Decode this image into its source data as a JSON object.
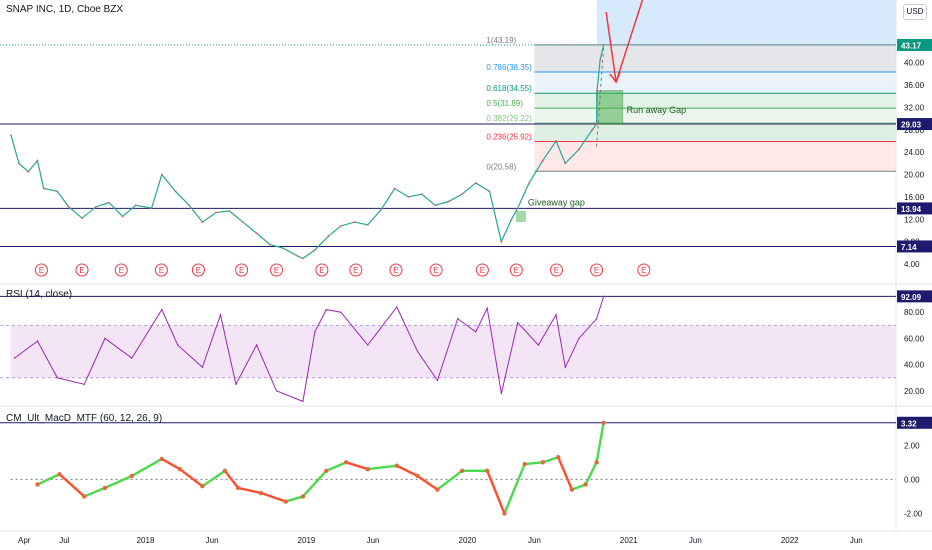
{
  "header": {
    "symbol_title": "SNAP INC, 1D, Cboe BZX",
    "currency_button": "USD"
  },
  "rsi_pane": {
    "title": "RSI (14, close)"
  },
  "macd_pane": {
    "title": "CM_Ult_MacD_MTF (60, 12, 26, 9)"
  },
  "annotations": {
    "runaway_gap": "Run away Gap",
    "giveaway_gap": "Giveaway gap",
    "earnings_marker": "E"
  },
  "price_badges": [
    {
      "label": "43.17",
      "value": 43.17,
      "color": "#089981"
    },
    {
      "label": "29.03",
      "value": 29.03,
      "color": "#1e1b6e"
    },
    {
      "label": "13.94",
      "value": 13.94,
      "color": "#1e1b6e"
    },
    {
      "label": "7.14",
      "value": 7.14,
      "color": "#1e1b6e"
    }
  ],
  "rsi_badge": {
    "label": "92.09",
    "value": 92.09,
    "color": "#1e1b6e"
  },
  "macd_badge": {
    "label": "3.32",
    "value": 3.32,
    "color": "#1e1b6e"
  },
  "chart_data": [
    {
      "type": "line",
      "title": "SNAP INC, 1D, Cboe BZX",
      "series": [
        {
          "name": "",
          "points": [
            [
              "2017-03-02",
              27.0
            ],
            [
              "2017-03-20",
              22.0
            ],
            [
              "2017-04-10",
              20.5
            ],
            [
              "2017-05-01",
              22.5
            ],
            [
              "2017-05-15",
              17.5
            ],
            [
              "2017-06-15",
              17.0
            ],
            [
              "2017-07-10",
              14.3
            ],
            [
              "2017-08-10",
              12.2
            ],
            [
              "2017-09-10",
              14.2
            ],
            [
              "2017-10-10",
              15.0
            ],
            [
              "2017-11-10",
              12.5
            ],
            [
              "2017-12-10",
              14.5
            ],
            [
              "2018-01-15",
              14.0
            ],
            [
              "2018-02-07",
              20.0
            ],
            [
              "2018-03-10",
              17.0
            ],
            [
              "2018-04-10",
              14.5
            ],
            [
              "2018-05-10",
              11.5
            ],
            [
              "2018-06-10",
              13.2
            ],
            [
              "2018-07-10",
              13.5
            ],
            [
              "2018-08-10",
              11.5
            ],
            [
              "2018-09-10",
              9.5
            ],
            [
              "2018-10-10",
              7.5
            ],
            [
              "2018-11-10",
              6.8
            ],
            [
              "2018-12-10",
              5.5
            ],
            [
              "2018-12-24",
              5.0
            ],
            [
              "2019-01-20",
              6.5
            ],
            [
              "2019-02-20",
              9.0
            ],
            [
              "2019-03-20",
              10.8
            ],
            [
              "2019-04-20",
              11.5
            ],
            [
              "2019-05-20",
              11.0
            ],
            [
              "2019-06-20",
              13.8
            ],
            [
              "2019-07-20",
              17.5
            ],
            [
              "2019-08-20",
              16.0
            ],
            [
              "2019-09-20",
              16.5
            ],
            [
              "2019-10-20",
              14.5
            ],
            [
              "2019-11-20",
              15.2
            ],
            [
              "2019-12-20",
              16.5
            ],
            [
              "2020-01-20",
              18.5
            ],
            [
              "2020-02-20",
              17.0
            ],
            [
              "2020-03-18",
              8.0
            ],
            [
              "2020-04-10",
              12.0
            ],
            [
              "2020-04-24",
              14.0
            ],
            [
              "2020-05-20",
              18.5
            ],
            [
              "2020-06-20",
              22.5
            ],
            [
              "2020-07-20",
              26.0
            ],
            [
              "2020-08-10",
              22.0
            ],
            [
              "2020-09-10",
              24.5
            ],
            [
              "2020-10-10",
              28.0
            ],
            [
              "2020-10-20",
              29.03
            ],
            [
              "2020-10-21",
              35.0
            ],
            [
              "2020-10-28",
              40.5
            ],
            [
              "2020-11-05",
              43.17
            ]
          ]
        }
      ],
      "ylim": [
        4,
        48
      ],
      "y_ticks": [
        4,
        8,
        12,
        16,
        20,
        24,
        28,
        32,
        36,
        40
      ],
      "x_tick_labels": [
        "Apr",
        "Jul",
        "2018",
        "Jun",
        "2019",
        "Jun",
        "2020",
        "Jun",
        "2021",
        "Jun",
        "2022",
        "Jun"
      ],
      "fibonacci": [
        {
          "label": "1(43.19)",
          "value": 43.19,
          "color": "#787b86"
        },
        {
          "label": "0.786(38.35)",
          "value": 38.35,
          "color": "#2196f3"
        },
        {
          "label": "0.618(34.55)",
          "value": 34.55,
          "color": "#089981"
        },
        {
          "label": "0.5(31.89)",
          "value": 31.89,
          "color": "#4caf50"
        },
        {
          "label": "0.382(29.22)",
          "value": 29.22,
          "color": "#81c784"
        },
        {
          "label": "0.236(25.92)",
          "value": 25.92,
          "color": "#f23645"
        },
        {
          "label": "0(20.58)",
          "value": 20.58,
          "color": "#787b86"
        }
      ],
      "horizontal_levels": [
        29.03,
        13.94,
        7.14
      ],
      "earnings_dates": [
        "2017-05-10",
        "2017-08-10",
        "2017-11-07",
        "2018-02-06",
        "2018-05-01",
        "2018-08-07",
        "2018-10-25",
        "2019-02-05",
        "2019-04-23",
        "2019-07-23",
        "2019-10-22",
        "2020-02-04",
        "2020-04-21",
        "2020-07-21",
        "2020-10-20",
        "2021-02-04"
      ]
    },
    {
      "type": "line",
      "title": "RSI (14, close)",
      "series": [
        {
          "name": "",
          "points": [
            [
              "2017-03-10",
              45
            ],
            [
              "2017-05-01",
              58
            ],
            [
              "2017-06-15",
              30
            ],
            [
              "2017-08-15",
              25
            ],
            [
              "2017-10-01",
              60
            ],
            [
              "2017-12-01",
              45
            ],
            [
              "2018-02-07",
              82
            ],
            [
              "2018-03-15",
              55
            ],
            [
              "2018-05-10",
              38
            ],
            [
              "2018-06-20",
              78
            ],
            [
              "2018-07-25",
              25
            ],
            [
              "2018-09-10",
              55
            ],
            [
              "2018-10-25",
              20
            ],
            [
              "2018-12-24",
              12
            ],
            [
              "2019-01-20",
              65
            ],
            [
              "2019-02-15",
              82
            ],
            [
              "2019-03-20",
              80
            ],
            [
              "2019-05-20",
              55
            ],
            [
              "2019-07-25",
              84
            ],
            [
              "2019-09-10",
              50
            ],
            [
              "2019-10-25",
              28
            ],
            [
              "2019-12-10",
              75
            ],
            [
              "2020-01-20",
              65
            ],
            [
              "2020-02-15",
              83
            ],
            [
              "2020-03-18",
              18
            ],
            [
              "2020-04-24",
              72
            ],
            [
              "2020-06-10",
              55
            ],
            [
              "2020-07-20",
              78
            ],
            [
              "2020-08-10",
              38
            ],
            [
              "2020-09-10",
              60
            ],
            [
              "2020-10-20",
              75
            ],
            [
              "2020-11-05",
              92.09
            ]
          ]
        }
      ],
      "ylim": [
        10,
        100
      ],
      "y_ticks": [
        20,
        40,
        60,
        80
      ],
      "band": [
        30,
        70
      ]
    },
    {
      "type": "line",
      "title": "CM_Ult_MacD_MTF (60, 12, 26, 9)",
      "series": [
        {
          "name": "",
          "points": [
            [
              "2017-05-01",
              -0.3
            ],
            [
              "2017-06-20",
              0.3
            ],
            [
              "2017-08-15",
              -1.0
            ],
            [
              "2017-10-01",
              -0.5
            ],
            [
              "2017-12-01",
              0.2
            ],
            [
              "2018-02-07",
              1.2
            ],
            [
              "2018-03-20",
              0.6
            ],
            [
              "2018-05-10",
              -0.4
            ],
            [
              "2018-06-30",
              0.5
            ],
            [
              "2018-07-30",
              -0.5
            ],
            [
              "2018-09-20",
              -0.8
            ],
            [
              "2018-11-15",
              -1.3
            ],
            [
              "2018-12-24",
              -1.0
            ],
            [
              "2019-02-15",
              0.5
            ],
            [
              "2019-04-01",
              1.0
            ],
            [
              "2019-05-20",
              0.6
            ],
            [
              "2019-07-25",
              0.8
            ],
            [
              "2019-09-10",
              0.2
            ],
            [
              "2019-10-25",
              -0.6
            ],
            [
              "2019-12-20",
              0.5
            ],
            [
              "2020-02-15",
              0.5
            ],
            [
              "2020-03-25",
              -2.0
            ],
            [
              "2020-05-10",
              0.9
            ],
            [
              "2020-06-20",
              1.0
            ],
            [
              "2020-07-25",
              1.3
            ],
            [
              "2020-08-25",
              -0.6
            ],
            [
              "2020-09-25",
              -0.3
            ],
            [
              "2020-10-20",
              1.0
            ],
            [
              "2020-11-05",
              3.32
            ]
          ]
        }
      ],
      "ylim": [
        -2.5,
        3.6
      ],
      "y_ticks": [
        -2.0,
        0.0,
        2.0
      ]
    }
  ]
}
